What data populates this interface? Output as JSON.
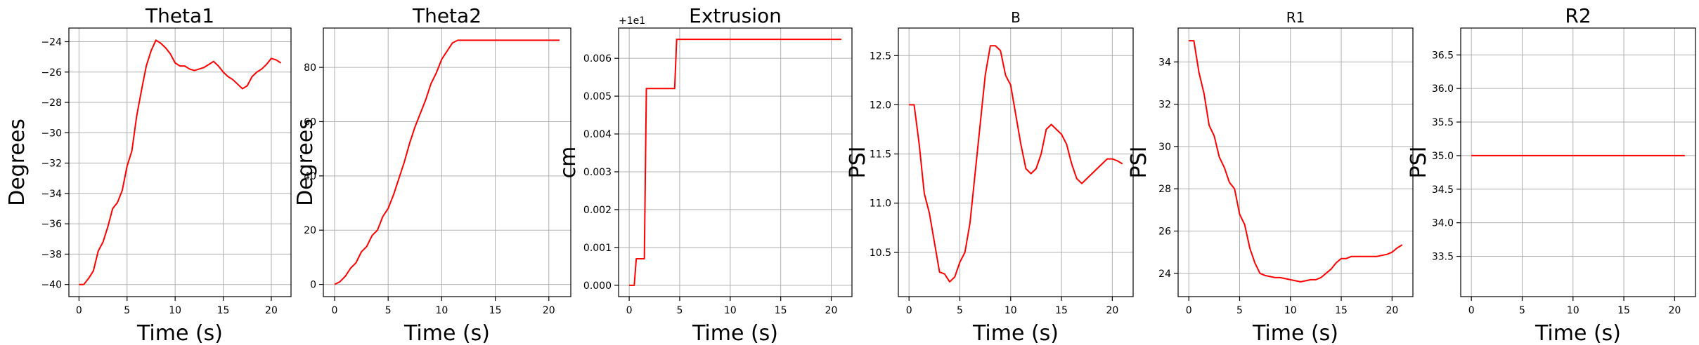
{
  "chart_data": [
    {
      "type": "line",
      "title": "Theta1",
      "xlabel": "Time (s)",
      "ylabel": "Degrees",
      "xlim": [
        -1.05,
        22.05
      ],
      "ylim": [
        -40.8,
        -23.1
      ],
      "xticks": [
        0,
        5,
        10,
        15,
        20
      ],
      "xtick_labels": [
        "0",
        "5",
        "10",
        "15",
        "20"
      ],
      "yticks": [
        -40,
        -38,
        -36,
        -34,
        -32,
        -30,
        -28,
        -26,
        -24
      ],
      "ytick_labels": [
        "−40",
        "−38",
        "−36",
        "−34",
        "−32",
        "−30",
        "−28",
        "−26",
        "−24"
      ],
      "offset_text": "",
      "grid": true,
      "line_color": "#ff0000",
      "series": [
        {
          "x": [
            0,
            0.5,
            1,
            1.5,
            2,
            2.5,
            3,
            3.5,
            4,
            4.5,
            5,
            5.5,
            6,
            6.5,
            7,
            7.5,
            8,
            8.5,
            9,
            9.5,
            10,
            10.5,
            11,
            11.5,
            12,
            12.5,
            13,
            13.5,
            14,
            14.5,
            15,
            15.5,
            16,
            16.5,
            17,
            17.5,
            18,
            18.5,
            19,
            19.5,
            20,
            20.5,
            21
          ],
          "y": [
            -40,
            -40,
            -39.6,
            -39.1,
            -37.8,
            -37.2,
            -36.2,
            -35.0,
            -34.6,
            -33.8,
            -32.2,
            -31.2,
            -28.9,
            -27.2,
            -25.6,
            -24.6,
            -23.9,
            -24.1,
            -24.4,
            -24.8,
            -25.4,
            -25.6,
            -25.6,
            -25.8,
            -25.9,
            -25.8,
            -25.7,
            -25.5,
            -25.3,
            -25.6,
            -26.0,
            -26.3,
            -26.5,
            -26.8,
            -27.1,
            -26.9,
            -26.3,
            -26.0,
            -25.8,
            -25.5,
            -25.1,
            -25.2,
            -25.4
          ]
        }
      ]
    },
    {
      "type": "line",
      "title": "Theta2",
      "xlabel": "Time (s)",
      "ylabel": "Degrees",
      "xlim": [
        -1.05,
        22.05
      ],
      "ylim": [
        -4.5,
        94.5
      ],
      "xticks": [
        0,
        5,
        10,
        15,
        20
      ],
      "xtick_labels": [
        "0",
        "5",
        "10",
        "15",
        "20"
      ],
      "yticks": [
        0,
        20,
        40,
        60,
        80
      ],
      "ytick_labels": [
        "0",
        "20",
        "40",
        "60",
        "80"
      ],
      "offset_text": "",
      "grid": true,
      "line_color": "#ff0000",
      "series": [
        {
          "x": [
            0,
            0.5,
            1,
            1.5,
            2,
            2.5,
            3,
            3.5,
            4,
            4.5,
            5,
            5.5,
            6,
            6.5,
            7,
            7.5,
            8,
            8.5,
            9,
            9.5,
            10,
            10.5,
            11,
            11.5,
            12,
            14,
            16,
            18,
            20,
            21
          ],
          "y": [
            0,
            1,
            3,
            6,
            8,
            12,
            14,
            18,
            20,
            25,
            28,
            33,
            39,
            45,
            52,
            58,
            63,
            68,
            74,
            78,
            83,
            86,
            89,
            90,
            90,
            90,
            90,
            90,
            90,
            90
          ]
        }
      ]
    },
    {
      "type": "line",
      "title": "Extrusion",
      "xlabel": "Time (s)",
      "ylabel": "cm",
      "xlim": [
        -1.05,
        22.05
      ],
      "ylim": [
        -0.0003,
        0.0068
      ],
      "xticks": [
        0,
        5,
        10,
        15,
        20
      ],
      "xtick_labels": [
        "0",
        "5",
        "10",
        "15",
        "20"
      ],
      "yticks": [
        0,
        0.001,
        0.002,
        0.003,
        0.004,
        0.005,
        0.006
      ],
      "ytick_labels": [
        "0.000",
        "0.001",
        "0.002",
        "0.003",
        "0.004",
        "0.005",
        "0.006"
      ],
      "offset_text": "+1e1",
      "grid": true,
      "line_color": "#ff0000",
      "series": [
        {
          "x": [
            0,
            0.5,
            0.7,
            1.0,
            1.5,
            1.7,
            2.0,
            4.0,
            4.5,
            4.7,
            21
          ],
          "y": [
            0,
            0,
            0.0007,
            0.0007,
            0.0007,
            0.0052,
            0.0052,
            0.0052,
            0.0052,
            0.0065,
            0.0065
          ]
        }
      ]
    },
    {
      "type": "line",
      "title": "B",
      "xlabel": "Time (s)",
      "ylabel": "PSI",
      "xlim": [
        -1.05,
        22.05
      ],
      "ylim": [
        10.05,
        12.78
      ],
      "xticks": [
        0,
        5,
        10,
        15,
        20
      ],
      "xtick_labels": [
        "0",
        "5",
        "10",
        "15",
        "20"
      ],
      "yticks": [
        10.5,
        11.0,
        11.5,
        12.0,
        12.5
      ],
      "ytick_labels": [
        "10.5",
        "11.0",
        "11.5",
        "12.0",
        "12.5"
      ],
      "offset_text": "",
      "grid": true,
      "line_color": "#ff0000",
      "series": [
        {
          "x": [
            0,
            0.5,
            1,
            1.5,
            2,
            2.5,
            3,
            3.5,
            4,
            4.5,
            5,
            5.5,
            6,
            6.5,
            7,
            7.5,
            8,
            8.5,
            9,
            9.5,
            10,
            10.5,
            11,
            11.5,
            12,
            12.5,
            13,
            13.5,
            14,
            14.5,
            15,
            15.5,
            16,
            16.5,
            17,
            17.5,
            18,
            18.5,
            19,
            19.5,
            20,
            20.5,
            21
          ],
          "y": [
            12.0,
            12.0,
            11.6,
            11.1,
            10.9,
            10.6,
            10.3,
            10.28,
            10.2,
            10.25,
            10.4,
            10.5,
            10.8,
            11.3,
            11.8,
            12.3,
            12.6,
            12.6,
            12.55,
            12.3,
            12.2,
            11.9,
            11.6,
            11.35,
            11.3,
            11.35,
            11.5,
            11.75,
            11.8,
            11.75,
            11.7,
            11.6,
            11.4,
            11.25,
            11.2,
            11.25,
            11.3,
            11.35,
            11.4,
            11.45,
            11.45,
            11.43,
            11.4
          ]
        }
      ]
    },
    {
      "type": "line",
      "title": "R1",
      "xlabel": "Time (s)",
      "ylabel": "PSI",
      "xlim": [
        -1.05,
        22.05
      ],
      "ylim": [
        22.9,
        35.6
      ],
      "xticks": [
        0,
        5,
        10,
        15,
        20
      ],
      "xtick_labels": [
        "0",
        "5",
        "10",
        "15",
        "20"
      ],
      "yticks": [
        24,
        26,
        28,
        30,
        32,
        34
      ],
      "ytick_labels": [
        "24",
        "26",
        "28",
        "30",
        "32",
        "34"
      ],
      "offset_text": "",
      "grid": true,
      "line_color": "#ff0000",
      "series": [
        {
          "x": [
            0,
            0.5,
            1,
            1.5,
            2,
            2.5,
            3,
            3.5,
            4,
            4.5,
            5,
            5.5,
            6,
            6.5,
            7,
            7.5,
            8,
            8.5,
            9,
            9.5,
            10,
            10.5,
            11,
            11.5,
            12,
            12.5,
            13,
            13.5,
            14,
            14.5,
            15,
            15.5,
            16,
            16.5,
            17,
            17.5,
            18,
            18.5,
            19,
            19.5,
            20,
            20.5,
            21
          ],
          "y": [
            35,
            35,
            33.5,
            32.5,
            31,
            30.5,
            29.5,
            29.0,
            28.3,
            28.0,
            26.8,
            26.3,
            25.2,
            24.5,
            24.0,
            23.9,
            23.85,
            23.8,
            23.8,
            23.75,
            23.7,
            23.65,
            23.6,
            23.65,
            23.7,
            23.7,
            23.8,
            24.0,
            24.2,
            24.5,
            24.7,
            24.7,
            24.8,
            24.8,
            24.8,
            24.8,
            24.8,
            24.8,
            24.85,
            24.9,
            25.0,
            25.2,
            25.35
          ]
        }
      ]
    },
    {
      "type": "line",
      "title": "R2",
      "xlabel": "Time (s)",
      "ylabel": "PSI",
      "xlim": [
        -1.05,
        22.05
      ],
      "ylim": [
        32.9,
        36.9
      ],
      "xticks": [
        0,
        5,
        10,
        15,
        20
      ],
      "xtick_labels": [
        "0",
        "5",
        "10",
        "15",
        "20"
      ],
      "yticks": [
        33.5,
        34.0,
        34.5,
        35.0,
        35.5,
        36.0,
        36.5
      ],
      "ytick_labels": [
        "33.5",
        "34.0",
        "34.5",
        "35.0",
        "35.5",
        "36.0",
        "36.5"
      ],
      "offset_text": "",
      "grid": true,
      "line_color": "#ff0000",
      "series": [
        {
          "x": [
            0,
            21
          ],
          "y": [
            35,
            35
          ]
        }
      ]
    }
  ]
}
